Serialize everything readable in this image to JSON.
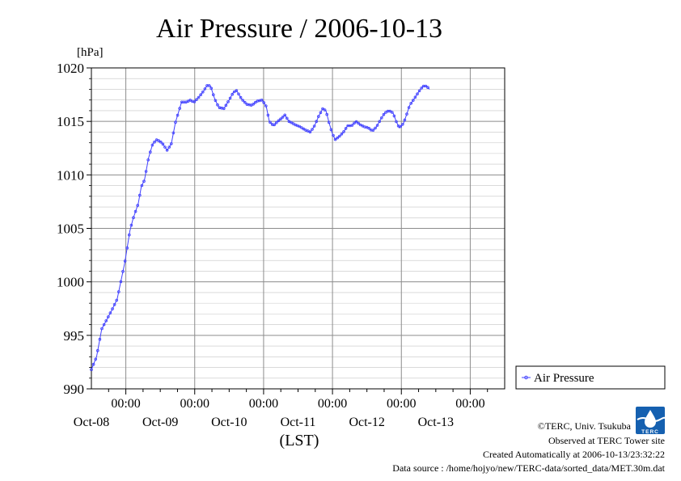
{
  "chart_data": {
    "type": "line",
    "title": "Air Pressure / 2006-10-13",
    "y_unit": "[hPa]",
    "xlabel": "(LST)",
    "ylim": [
      990,
      1020
    ],
    "y_ticks": [
      990,
      995,
      1000,
      1005,
      1010,
      1015,
      1020
    ],
    "y_tick_labels": [
      "990",
      "995",
      "1000",
      "1005",
      "1010",
      "1015",
      "1020"
    ],
    "xlim": [
      "2006-10-07 12:00",
      "2006-10-13 12:00"
    ],
    "x_tick_labels": [
      {
        "time": "00:00",
        "date": "Oct-08"
      },
      {
        "time": "00:00",
        "date": "Oct-09"
      },
      {
        "time": "00:00",
        "date": "Oct-10"
      },
      {
        "time": "00:00",
        "date": "Oct-11"
      },
      {
        "time": "00:00",
        "date": "Oct-12"
      },
      {
        "time": "00:00",
        "date": "Oct-13"
      }
    ],
    "grid": true,
    "legend_position": "right",
    "series": [
      {
        "name": "Air Pressure",
        "color": "#4040ff",
        "marker": "circle",
        "points": [
          [
            "2006-10-07 12:00",
            991.8
          ],
          [
            "2006-10-07 13:48",
            993.0
          ],
          [
            "2006-10-07 15:36",
            995.6
          ],
          [
            "2006-10-07 19:12",
            997.4
          ],
          [
            "2006-10-07 21:00",
            998.4
          ],
          [
            "2006-10-07 23:38",
            1001.8
          ],
          [
            "2006-10-08 01:26",
            1004.8
          ],
          [
            "2006-10-08 02:31",
            1005.9
          ],
          [
            "2006-10-08 04:19",
            1007.3
          ],
          [
            "2006-10-08 05:24",
            1008.9
          ],
          [
            "2006-10-08 06:29",
            1009.5
          ],
          [
            "2006-10-08 07:55",
            1011.6
          ],
          [
            "2006-10-08 09:22",
            1012.9
          ],
          [
            "2006-10-08 10:48",
            1013.3
          ],
          [
            "2006-10-08 12:36",
            1013.0
          ],
          [
            "2006-10-08 14:24",
            1012.3
          ],
          [
            "2006-10-08 15:50",
            1012.9
          ],
          [
            "2006-10-08 17:17",
            1014.9
          ],
          [
            "2006-10-08 19:26",
            1016.8
          ],
          [
            "2006-10-08 21:14",
            1016.8
          ],
          [
            "2006-10-08 22:19",
            1017.0
          ],
          [
            "2006-10-08 23:46",
            1016.8
          ],
          [
            "2006-10-09 01:34",
            1017.3
          ],
          [
            "2006-10-09 02:59",
            1017.8
          ],
          [
            "2006-10-09 04:26",
            1018.4
          ],
          [
            "2006-10-09 05:31",
            1018.3
          ],
          [
            "2006-10-09 06:58",
            1017.1
          ],
          [
            "2006-10-09 08:24",
            1016.3
          ],
          [
            "2006-10-09 10:12",
            1016.2
          ],
          [
            "2006-10-09 12:00",
            1017.0
          ],
          [
            "2006-10-09 13:26",
            1017.7
          ],
          [
            "2006-10-09 14:31",
            1017.9
          ],
          [
            "2006-10-09 16:19",
            1017.1
          ],
          [
            "2006-10-09 18:07",
            1016.6
          ],
          [
            "2006-10-09 19:55",
            1016.5
          ],
          [
            "2006-10-09 21:43",
            1016.9
          ],
          [
            "2006-10-09 23:31",
            1017.0
          ],
          [
            "2006-10-10 00:55",
            1016.4
          ],
          [
            "2006-10-10 02:00",
            1015.0
          ],
          [
            "2006-10-10 03:26",
            1014.6
          ],
          [
            "2006-10-10 04:53",
            1015.0
          ],
          [
            "2006-10-10 06:19",
            1015.3
          ],
          [
            "2006-10-10 07:24",
            1015.6
          ],
          [
            "2006-10-10 08:50",
            1015.0
          ],
          [
            "2006-10-10 10:55",
            1014.7
          ],
          [
            "2006-10-10 12:43",
            1014.5
          ],
          [
            "2006-10-10 14:31",
            1014.2
          ],
          [
            "2006-10-10 16:19",
            1014.0
          ],
          [
            "2006-10-10 17:46",
            1014.6
          ],
          [
            "2006-10-10 19:12",
            1015.5
          ],
          [
            "2006-10-10 20:38",
            1016.2
          ],
          [
            "2006-10-10 21:43",
            1016.0
          ],
          [
            "2006-10-10 22:48",
            1014.9
          ],
          [
            "2006-10-10 23:53",
            1013.9
          ],
          [
            "2006-10-11 00:58",
            1013.3
          ],
          [
            "2006-10-11 02:24",
            1013.6
          ],
          [
            "2006-10-11 03:50",
            1014.0
          ],
          [
            "2006-10-11 05:17",
            1014.6
          ],
          [
            "2006-10-11 06:43",
            1014.6
          ],
          [
            "2006-10-11 08:10",
            1015.0
          ],
          [
            "2006-10-11 09:36",
            1014.7
          ],
          [
            "2006-10-11 11:02",
            1014.5
          ],
          [
            "2006-10-11 12:29",
            1014.4
          ],
          [
            "2006-10-11 13:55",
            1014.1
          ],
          [
            "2006-10-11 15:22",
            1014.5
          ],
          [
            "2006-10-11 16:48",
            1015.2
          ],
          [
            "2006-10-11 18:14",
            1015.8
          ],
          [
            "2006-10-11 19:41",
            1016.0
          ],
          [
            "2006-10-11 21:07",
            1015.8
          ],
          [
            "2006-10-11 22:12",
            1015.0
          ],
          [
            "2006-10-11 23:17",
            1014.4
          ],
          [
            "2006-10-12 00:43",
            1014.8
          ],
          [
            "2006-10-12 01:48",
            1015.6
          ],
          [
            "2006-10-12 02:53",
            1016.5
          ],
          [
            "2006-10-12 04:41",
            1017.2
          ],
          [
            "2006-10-12 06:07",
            1017.8
          ],
          [
            "2006-10-12 07:34",
            1018.3
          ],
          [
            "2006-10-12 08:46",
            1018.3
          ],
          [
            "2006-10-12 09:50",
            1018.0
          ]
        ]
      }
    ]
  },
  "footer": {
    "copyright": "©TERC, Univ. Tsukuba",
    "observed": "Observed at TERC Tower site",
    "created": "Created Automatically at 2006-10-13/23:32:22",
    "source": "Data source : /home/hojyo/new/TERC-data/sorted_data/MET.30m.dat"
  },
  "logo": {
    "text": "TERC",
    "color": "#1560b0"
  }
}
